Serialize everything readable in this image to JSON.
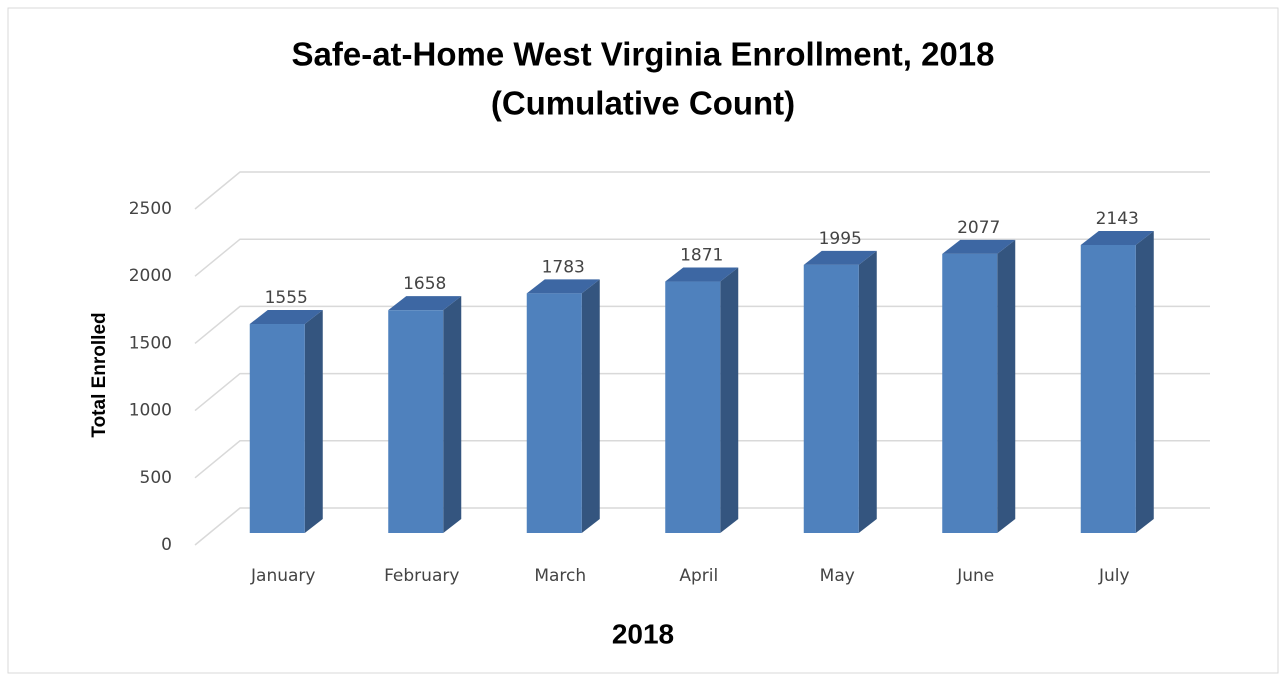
{
  "chart_data": {
    "type": "bar3d",
    "title": [
      "Safe-at-Home West Virginia Enrollment, 2018",
      "(Cumulative Count)"
    ],
    "xlabel": "2018",
    "ylabel": "Total Enrolled",
    "categories": [
      "January",
      "February",
      "March",
      "April",
      "May",
      "June",
      "July"
    ],
    "values": [
      1555,
      1658,
      1783,
      1871,
      1995,
      2077,
      2143
    ],
    "color": "#4f81bd",
    "side_color": "#34557f",
    "top_color": "#3d67a3",
    "ylim": [
      0,
      2500
    ],
    "yticks": [
      0,
      500,
      1000,
      1500,
      2000,
      2500
    ],
    "grid": true
  }
}
